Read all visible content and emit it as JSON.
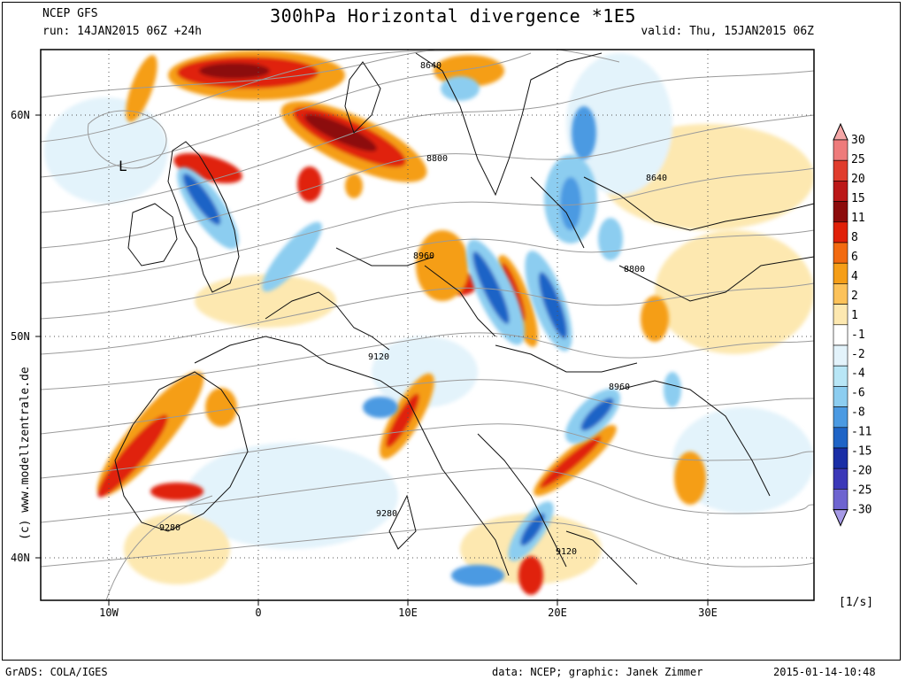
{
  "header": {
    "model": "NCEP GFS",
    "run": "run: 14JAN2015 06Z +24h",
    "title": "300hPa Horizontal divergence *1E5",
    "valid": "valid: Thu, 15JAN2015 06Z"
  },
  "map": {
    "lat_labels": [
      "60N",
      "50N",
      "40N"
    ],
    "lon_labels": [
      "10W",
      "0",
      "10E",
      "20E",
      "30E"
    ],
    "contour_labels": [
      "8640",
      "8800",
      "8640",
      "8960",
      "8800",
      "9120",
      "8960",
      "9280",
      "9280",
      "9120"
    ],
    "low_marker": "L"
  },
  "colorbar": {
    "ticks": [
      "30",
      "25",
      "20",
      "15",
      "11",
      "8",
      "6",
      "4",
      "2",
      "1",
      "-1",
      "-2",
      "-4",
      "-6",
      "-8",
      "-11",
      "-15",
      "-20",
      "-25",
      "-30"
    ],
    "colors": [
      "#f4a6a6",
      "#ee7b7b",
      "#e03c2c",
      "#bb1818",
      "#8c0c0c",
      "#e02008",
      "#f26a10",
      "#f59e18",
      "#fcc25a",
      "#fde8b0",
      "#ffffff",
      "#e3f3fb",
      "#b8e6f6",
      "#8ccdf0",
      "#4b9ae2",
      "#1f64c6",
      "#1a2ea6",
      "#3b38b8",
      "#6e64d0",
      "#a69ae6"
    ],
    "units": "[1/s]"
  },
  "footer": {
    "left": "GrADS: COLA/IGES",
    "data": "data: NCEP; graphic: Janek Zimmer",
    "date": "2015-01-14-10:48"
  },
  "side_credit": "(c)  www.modellzentrale.de"
}
